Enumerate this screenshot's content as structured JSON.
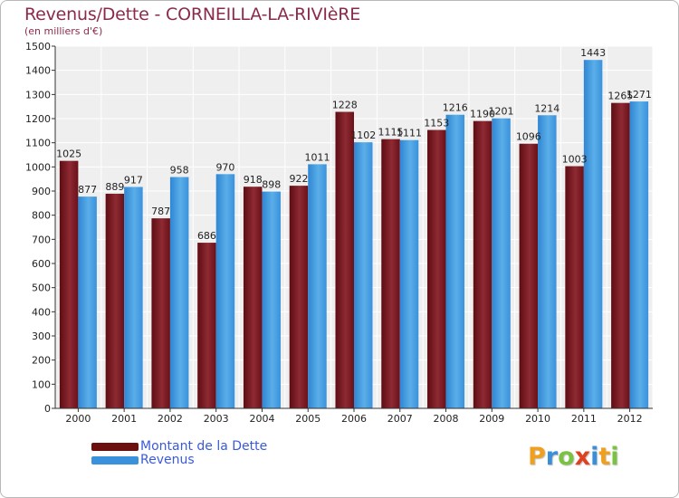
{
  "header": {
    "title": "Revenus/Dette - CORNEILLA-LA-RIVIèRE",
    "subtitle": "(en milliers d'€)"
  },
  "chart_data": {
    "type": "bar",
    "categories": [
      "2000",
      "2001",
      "2002",
      "2003",
      "2004",
      "2005",
      "2006",
      "2007",
      "2008",
      "2009",
      "2010",
      "2011",
      "2012"
    ],
    "series": [
      {
        "name": "Montant de la Dette",
        "color": "#7a1520",
        "values": [
          1025,
          889,
          787,
          686,
          918,
          922,
          1228,
          1115,
          1153,
          1190,
          1096,
          1003,
          1265
        ],
        "labels": [
          "1025",
          "889",
          "787",
          "686",
          "918",
          "922",
          "1228",
          "1115",
          "1153",
          "1190",
          "1096",
          "1003",
          "1265"
        ]
      },
      {
        "name": "Revenus",
        "color": "#3a92dc",
        "values": [
          877,
          917,
          958,
          970,
          898,
          1011,
          1102,
          1111,
          1216,
          1201,
          1214,
          1443,
          1271
        ],
        "labels": [
          "877",
          "917",
          "958",
          "970",
          "898",
          "1011",
          "1102",
          "1111",
          "1216",
          "1201",
          "1214",
          "1443",
          "1271"
        ]
      }
    ],
    "ylim": [
      0,
      1500
    ],
    "yticks": [
      "0",
      "100",
      "200",
      "300",
      "400",
      "500",
      "600",
      "700",
      "800",
      "900",
      "1000",
      "1100",
      "1200",
      "1300",
      "1400",
      "1500"
    ],
    "grid": true,
    "legend": "bottom-left"
  },
  "legend": {
    "items": [
      {
        "label": "Montant de la Dette",
        "color": "#6b0f0f"
      },
      {
        "label": "Revenus",
        "color": "#3a92dc"
      }
    ]
  },
  "brand": {
    "letters": [
      "P",
      "r",
      "o",
      "x",
      "i",
      "t",
      "i"
    ],
    "colors": [
      "#f0a020",
      "#3a8fd8",
      "#7cc242",
      "#e04020",
      "#3a8fd8",
      "#f0a020",
      "#7cc242"
    ]
  }
}
